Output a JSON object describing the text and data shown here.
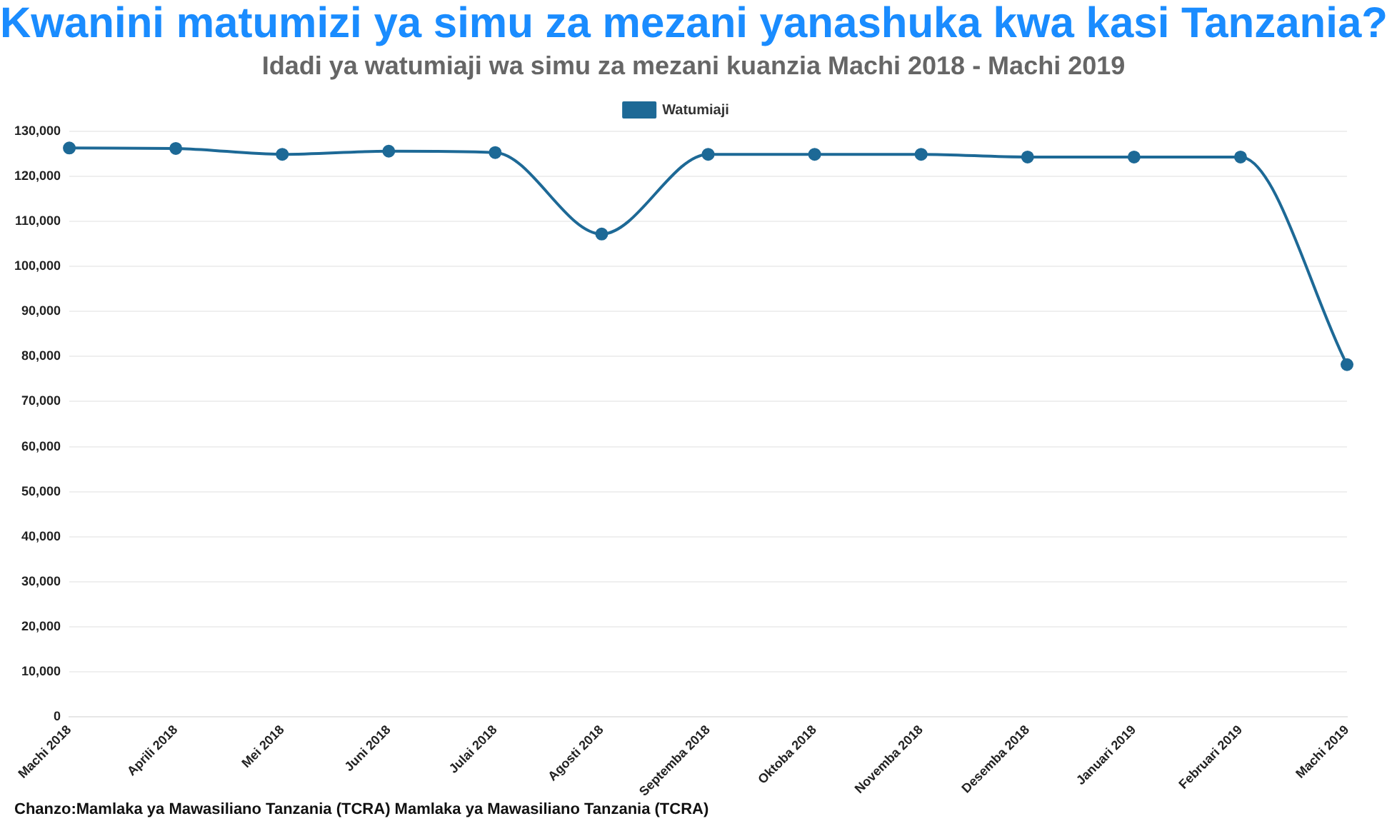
{
  "chart_data": {
    "type": "line",
    "title": "Kwanini matumizi ya simu za mezani yanashuka kwa kasi Tanzania?",
    "subtitle": "Idadi ya watumiaji wa simu za mezani kuanzia Machi 2018 - Machi 2019",
    "categories": [
      "Machi 2018",
      "Aprili 2018",
      "Mei 2018",
      "Juni 2018",
      "Julai 2018",
      "Agosti 2018",
      "Septemba 2018",
      "Oktoba 2018",
      "Novemba 2018",
      "Desemba 2018",
      "Januari 2019",
      "Februari 2019",
      "Machi 2019"
    ],
    "series": [
      {
        "name": "Watumiaji",
        "color": "#1d6996",
        "values": [
          126300,
          126200,
          124900,
          125600,
          125300,
          107200,
          124900,
          124900,
          124900,
          124300,
          124300,
          124300,
          78200
        ]
      }
    ],
    "ylim": [
      0,
      130000
    ],
    "yticks": [
      {
        "value": 0,
        "label": "0"
      },
      {
        "value": 10000,
        "label": "10,000"
      },
      {
        "value": 20000,
        "label": "20,000"
      },
      {
        "value": 30000,
        "label": "30,000"
      },
      {
        "value": 40000,
        "label": "40,000"
      },
      {
        "value": 50000,
        "label": "50,000"
      },
      {
        "value": 60000,
        "label": "60,000"
      },
      {
        "value": 70000,
        "label": "70,000"
      },
      {
        "value": 80000,
        "label": "80,000"
      },
      {
        "value": 90000,
        "label": "90,000"
      },
      {
        "value": 100000,
        "label": "100,000"
      },
      {
        "value": 110000,
        "label": "110,000"
      },
      {
        "value": 120000,
        "label": "120,000"
      },
      {
        "value": 130000,
        "label": "130,000"
      }
    ],
    "grid": "y",
    "legend": "top",
    "marker": "circle",
    "line_style": "solid",
    "annotations": [
      "Chanzo:Mamlaka ya Mawasiliano Tanzania (TCRA) Mamlaka ya Mawasiliano Tanzania (TCRA)"
    ]
  }
}
